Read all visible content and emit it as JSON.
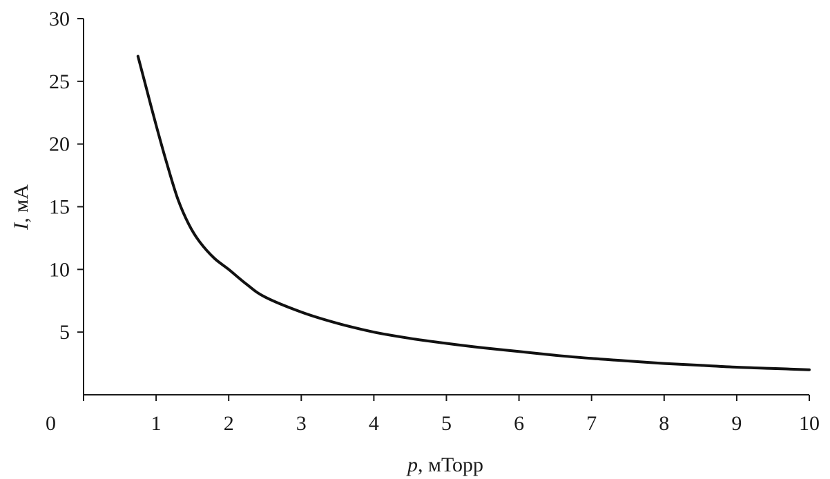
{
  "chart_data": {
    "type": "line",
    "title": "",
    "xlabel": {
      "var": "p",
      "unit": ", мТорр"
    },
    "ylabel": {
      "var": "I",
      "unit": ", мА"
    },
    "xlim": [
      0,
      10
    ],
    "ylim": [
      0,
      30
    ],
    "x_ticks": [
      0,
      1,
      2,
      3,
      4,
      5,
      6,
      7,
      8,
      9,
      10
    ],
    "y_ticks": [
      5,
      10,
      15,
      20,
      25,
      30
    ],
    "grid": false,
    "series": [
      {
        "color": "#111111",
        "x": [
          0.75,
          0.85,
          1.0,
          1.15,
          1.3,
          1.45,
          1.6,
          1.8,
          2.0,
          2.25,
          2.5,
          3.0,
          3.5,
          4.0,
          4.5,
          5.0,
          5.5,
          6.0,
          6.5,
          7.0,
          7.5,
          8.0,
          8.5,
          9.0,
          9.5,
          10.0
        ],
        "y": [
          27.0,
          24.8,
          21.5,
          18.4,
          15.6,
          13.6,
          12.2,
          10.9,
          10.0,
          8.8,
          7.8,
          6.6,
          5.7,
          5.0,
          4.5,
          4.1,
          3.75,
          3.45,
          3.15,
          2.9,
          2.7,
          2.5,
          2.35,
          2.2,
          2.1,
          2.0
        ]
      }
    ]
  }
}
